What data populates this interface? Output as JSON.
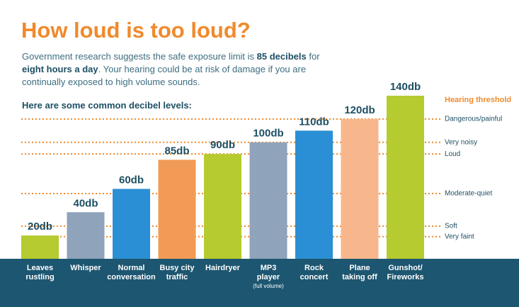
{
  "chart_data": {
    "type": "bar",
    "title": "How loud is too loud?",
    "subtitle_parts": [
      "Government research suggests the safe exposure limit is ",
      "85 decibels",
      " for ",
      "eight hours a day",
      ".  Your hearing could be at risk of damage if you are continually exposed to high volume sounds."
    ],
    "intro": "Here are some common decibel levels:",
    "categories": [
      "Leaves\nrustling",
      "Whisper",
      "Normal\nconversation",
      "Busy city\ntraffic",
      "Hairdryer",
      "MP3\nplayer",
      "Rock\nconcert",
      "Plane\ntaking off",
      "Gunshot/\nFireworks"
    ],
    "category_notes": [
      null,
      null,
      null,
      null,
      null,
      "(full volume)",
      null,
      null,
      null
    ],
    "values": [
      20,
      40,
      60,
      85,
      90,
      100,
      110,
      120,
      140
    ],
    "value_labels": [
      "20db",
      "40db",
      "60db",
      "85db",
      "90db",
      "100db",
      "110db",
      "120db",
      "140db"
    ],
    "colors": [
      "#b5cb30",
      "#8fa3bb",
      "#2a8fd4",
      "#f29b57",
      "#b5cb30",
      "#8fa3bb",
      "#2a8fd4",
      "#f8b68c",
      "#b5cb30"
    ],
    "ylim": [
      0,
      140
    ],
    "threshold_title": "Hearing threshold",
    "threshold_color": "#f08a2c",
    "thresholds": [
      {
        "value": 120,
        "label": "Dangerous/painful"
      },
      {
        "value": 100,
        "label": "Very noisy"
      },
      {
        "value": 90,
        "label": "Loud"
      },
      {
        "value": 56,
        "label": "Moderate-quiet"
      },
      {
        "value": 28,
        "label": "Soft"
      },
      {
        "value": 19,
        "label": "Very faint"
      }
    ]
  }
}
